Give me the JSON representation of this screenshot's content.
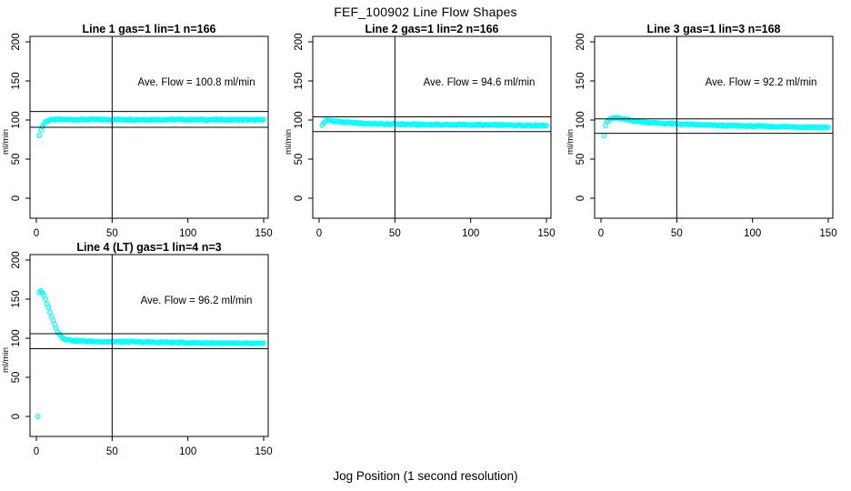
{
  "page": {
    "title": "FEF_100902  Line Flow Shapes",
    "xlabel": "Jog Position (1 second resolution)"
  },
  "chart_data": {
    "type": "scatter",
    "layout": "2x2-grid",
    "title": "FEF_100902  Line Flow Shapes",
    "xlabel": "Jog Position (1 second resolution)",
    "ylabel": "ml/min",
    "x_ticks": [
      0,
      50,
      100,
      150
    ],
    "y_ticks": [
      0,
      50,
      100,
      150,
      200
    ],
    "xlim": [
      -4,
      153
    ],
    "ylim": [
      -25,
      208
    ],
    "grid": false,
    "point_color": "#00FFFF",
    "axis_color": "#000000",
    "vline_x": 50,
    "panels": [
      {
        "title": "Line 1 gas=1 lin=1 n=166",
        "annotation": "Ave. Flow =  100.8  ml/min",
        "ave_flow_ml_min": 100.8,
        "n": 166,
        "ref_lines": [
          110.9,
          90.7
        ],
        "outliers": [
          [
            2,
            80
          ]
        ],
        "x_start": 3,
        "x_end": 150,
        "keypoints": [
          [
            3,
            87
          ],
          [
            4,
            92
          ],
          [
            5,
            95
          ],
          [
            6,
            97.5
          ],
          [
            7,
            99
          ],
          [
            9,
            100
          ],
          [
            15,
            100.5
          ],
          [
            40,
            100.5
          ],
          [
            80,
            100.5
          ],
          [
            120,
            100.3
          ],
          [
            150,
            100
          ]
        ]
      },
      {
        "title": "Line 2 gas=1 lin=2 n=166",
        "annotation": "Ave. Flow =  94.6  ml/min",
        "ave_flow_ml_min": 94.6,
        "n": 166,
        "ref_lines": [
          104.1,
          85.1
        ],
        "outliers": [],
        "x_start": 2,
        "x_end": 150,
        "keypoints": [
          [
            2,
            93
          ],
          [
            3,
            96.5
          ],
          [
            4,
            98.5
          ],
          [
            5,
            99.5
          ],
          [
            7,
            99.5
          ],
          [
            10,
            98.5
          ],
          [
            15,
            97.5
          ],
          [
            22,
            96.5
          ],
          [
            30,
            95.5
          ],
          [
            45,
            94.8
          ],
          [
            70,
            94.2
          ],
          [
            100,
            93.8
          ],
          [
            130,
            93.4
          ],
          [
            150,
            93.2
          ]
        ]
      },
      {
        "title": "Line 3 gas=1 lin=3 n=168",
        "annotation": "Ave. Flow =  92.2  ml/min",
        "ave_flow_ml_min": 92.2,
        "n": 168,
        "ref_lines": [
          101.4,
          83.0
        ],
        "outliers": [
          [
            2,
            80
          ]
        ],
        "x_start": 3,
        "x_end": 150,
        "keypoints": [
          [
            3,
            93
          ],
          [
            4,
            97
          ],
          [
            5,
            99.5
          ],
          [
            6,
            101
          ],
          [
            8,
            102.5
          ],
          [
            11,
            102.5
          ],
          [
            15,
            101
          ],
          [
            20,
            99.5
          ],
          [
            28,
            97.5
          ],
          [
            38,
            96
          ],
          [
            55,
            94.5
          ],
          [
            75,
            93.2
          ],
          [
            100,
            92.2
          ],
          [
            125,
            91.3
          ],
          [
            150,
            90.5
          ]
        ]
      },
      {
        "title": "Line 4 (LT) gas=1 lin=4 n=3",
        "annotation": "Ave. Flow =  96.2  ml/min",
        "ave_flow_ml_min": 96.2,
        "n": 3,
        "ref_lines": [
          105.8,
          86.6
        ],
        "outliers": [
          [
            1,
            0
          ]
        ],
        "x_start": 2,
        "x_end": 150,
        "keypoints": [
          [
            2,
            159
          ],
          [
            3,
            160
          ],
          [
            4,
            158
          ],
          [
            5,
            154
          ],
          [
            6,
            149.5
          ],
          [
            7,
            144.5
          ],
          [
            8,
            139
          ],
          [
            9,
            133.5
          ],
          [
            10,
            128
          ],
          [
            11,
            122.5
          ],
          [
            12,
            117.5
          ],
          [
            13,
            113
          ],
          [
            14,
            109
          ],
          [
            15,
            106
          ],
          [
            16,
            103.5
          ],
          [
            17,
            101.5
          ],
          [
            18,
            100
          ],
          [
            19,
            99
          ],
          [
            20,
            98.3
          ],
          [
            23,
            97.3
          ],
          [
            27,
            96.6
          ],
          [
            32,
            96.2
          ],
          [
            40,
            95.8
          ],
          [
            55,
            95.4
          ],
          [
            75,
            95
          ],
          [
            100,
            94.3
          ],
          [
            125,
            93.6
          ],
          [
            150,
            93
          ]
        ]
      }
    ]
  }
}
